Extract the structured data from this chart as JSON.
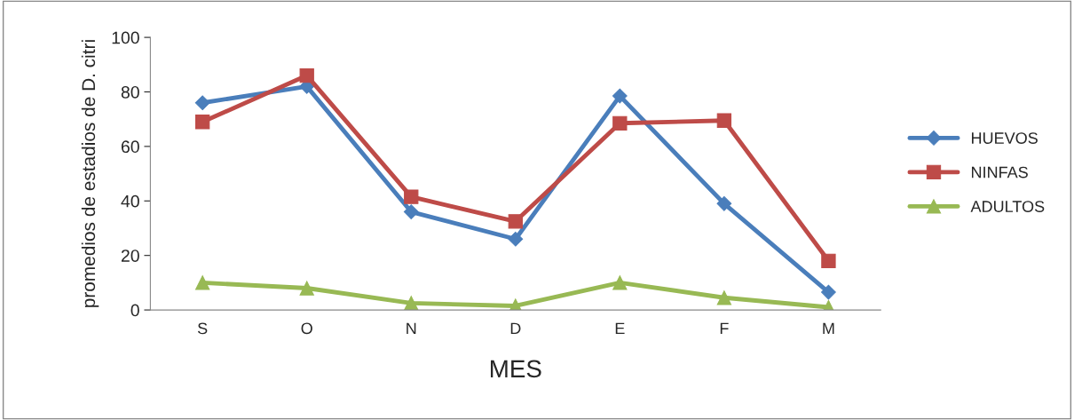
{
  "chart_data": {
    "type": "line",
    "xlabel": "MES",
    "ylabel": "promedios de estadios de D. citri",
    "categories": [
      "S",
      "O",
      "N",
      "D",
      "E",
      "F",
      "M"
    ],
    "series": [
      {
        "name": "HUEVOS",
        "color": "#4a7ebb",
        "marker": "diamond",
        "values": [
          76,
          82,
          36,
          26,
          78.5,
          39,
          6.5
        ]
      },
      {
        "name": "NINFAS",
        "color": "#be4b48",
        "marker": "square",
        "values": [
          69,
          86,
          41.5,
          32.5,
          68.5,
          69.5,
          18
        ]
      },
      {
        "name": "ADULTOS",
        "color": "#98b954",
        "marker": "triangle",
        "values": [
          10,
          8,
          2.5,
          1.5,
          10,
          4.5,
          1
        ]
      }
    ],
    "ylim": [
      0,
      100
    ],
    "yticks": [
      0,
      20,
      40,
      60,
      80,
      100
    ],
    "grid": false,
    "legend": "right"
  }
}
